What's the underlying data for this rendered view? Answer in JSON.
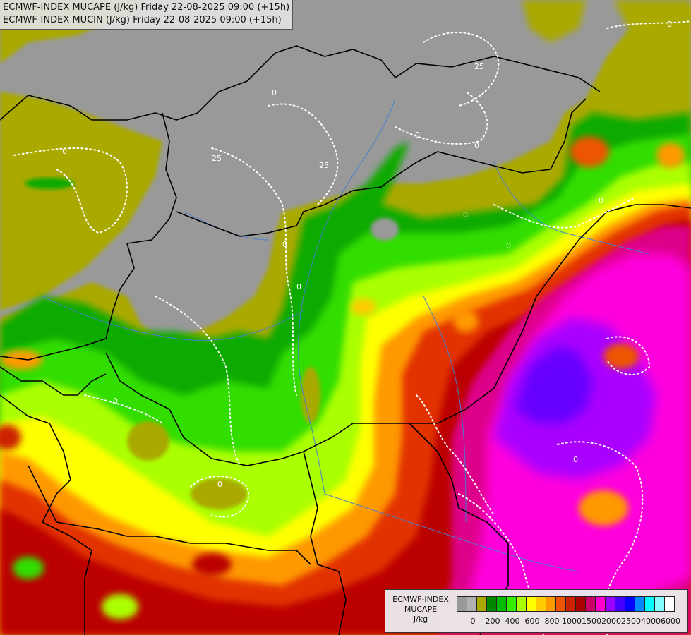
{
  "title": {
    "line1": "ECMWF-INDEX MUCAPE (J/kg) Friday 22-08-2025 09:00 (+15h)",
    "line2": "ECMWF-INDEX MUCIN (J/kg) Friday 22-08-2025 09:00 (+15h)"
  },
  "contour_labels": [
    "0",
    "25"
  ],
  "legend": {
    "name": "ECMWF-INDEX",
    "variable": "MUCAPE",
    "unit": "J/kg",
    "tick_labels": [
      "0",
      "200",
      "400",
      "600",
      "800",
      "1000",
      "1500",
      "2000",
      "2500",
      "4000",
      "6000"
    ],
    "colors": [
      "#999999",
      "#b0b0b0",
      "#a9a900",
      "#008800",
      "#00bb00",
      "#33ee00",
      "#aaff00",
      "#ffff00",
      "#ffcc00",
      "#ff9900",
      "#ee5500",
      "#cc2200",
      "#aa0000",
      "#cc0066",
      "#ff00cc",
      "#9900ff",
      "#4400ff",
      "#0000ff",
      "#0088ff",
      "#00ffff",
      "#88ffff",
      "#ffffff"
    ]
  },
  "palette": {
    "no_cape": "#999999",
    "low": "#a9a900",
    "green_dark": "#008800",
    "green": "#22cc00",
    "lime": "#99ff00",
    "yellow": "#ffff00",
    "orange": "#ff9900",
    "red": "#ee3300",
    "dark_red": "#bb0000",
    "magenta": "#dd0088",
    "pink": "#ff00dd",
    "violet": "#aa00ff",
    "indigo": "#6600ff",
    "border": "#000000",
    "river": "#4a7fd0",
    "mucin_contour": "#ffffff"
  }
}
